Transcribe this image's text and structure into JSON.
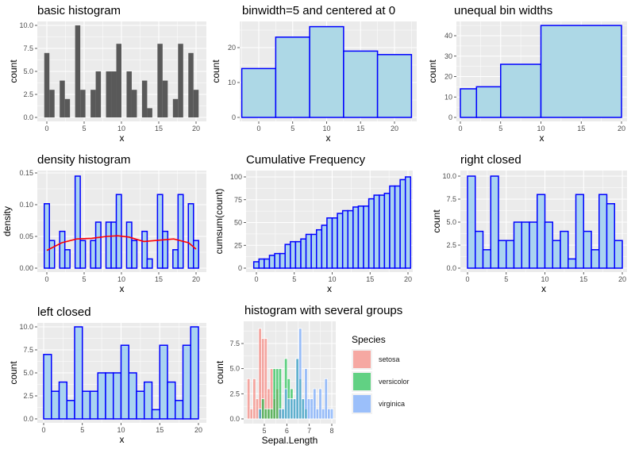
{
  "chart_data": [
    {
      "id": "p1",
      "type": "bar",
      "title": "basic histogram",
      "xlabel": "x",
      "ylabel": "count",
      "style": "gray",
      "bins": "30 equal bins, centers from 0 to 20",
      "counts": [
        7,
        3,
        0,
        4,
        2,
        0,
        10,
        3,
        0,
        3,
        5,
        0,
        5,
        5,
        8,
        0,
        5,
        3,
        0,
        4,
        1,
        0,
        8,
        4,
        0,
        2,
        8,
        0,
        7,
        3
      ],
      "xrange": [
        0,
        20
      ],
      "xticks": [
        0,
        5,
        10,
        15,
        20
      ],
      "yticks": [
        "0.0",
        "2.5",
        "5.0",
        "7.5",
        "10.0"
      ],
      "yticks_values": [
        0,
        2.5,
        5,
        7.5,
        10
      ],
      "grid": true
    },
    {
      "id": "p2",
      "type": "bar",
      "title": "binwidth=5 and centered at 0",
      "xlabel": "x",
      "ylabel": "count",
      "style": "blue",
      "centers": [
        0,
        5,
        10,
        15,
        20
      ],
      "binwidth": 5,
      "counts": [
        14,
        23,
        26,
        19,
        18
      ],
      "xticks": [
        0,
        5,
        10,
        15,
        20
      ],
      "yticks": [
        "0",
        "10",
        "20"
      ],
      "yticks_values": [
        0,
        10,
        20
      ],
      "grid": true
    },
    {
      "id": "p3",
      "type": "bar",
      "title": "unequal bin widths",
      "xlabel": "x",
      "ylabel": "count",
      "style": "blue",
      "breaks": [
        0,
        2,
        5,
        10,
        20
      ],
      "counts": [
        14,
        15,
        26,
        45
      ],
      "xticks": [
        0,
        5,
        10,
        15,
        20
      ],
      "yticks": [
        "0",
        "10",
        "20",
        "30",
        "40"
      ],
      "yticks_values": [
        0,
        10,
        20,
        30,
        40
      ],
      "grid": true
    },
    {
      "id": "p4",
      "type": "bar",
      "title": "density histogram",
      "xlabel": "x",
      "ylabel": "density",
      "style": "lightblue",
      "counts": [
        7,
        3,
        0,
        4,
        2,
        0,
        10,
        3,
        0,
        3,
        5,
        0,
        5,
        5,
        8,
        0,
        5,
        3,
        0,
        4,
        1,
        0,
        8,
        4,
        0,
        2,
        8,
        0,
        7,
        3
      ],
      "total": 100,
      "density_curve": {
        "color": "#ff0000",
        "x": [
          0,
          2,
          4,
          6,
          8,
          9.5,
          11,
          13,
          15,
          17,
          19,
          20
        ],
        "y": [
          0.028,
          0.04,
          0.046,
          0.047,
          0.05,
          0.051,
          0.049,
          0.042,
          0.044,
          0.046,
          0.04,
          0.03
        ]
      },
      "xticks": [
        0,
        5,
        10,
        15,
        20
      ],
      "yticks": [
        "0.00",
        "0.05",
        "0.10",
        "0.15"
      ],
      "yticks_values": [
        0,
        0.05,
        0.1,
        0.15
      ],
      "grid": true
    },
    {
      "id": "p5",
      "type": "bar",
      "title": "Cumulative Frequency",
      "xlabel": "x",
      "ylabel": "cumsum(count)",
      "style": "lightblue",
      "counts": [
        7,
        10,
        10,
        14,
        16,
        16,
        26,
        29,
        29,
        32,
        37,
        37,
        42,
        47,
        55,
        55,
        60,
        63,
        63,
        67,
        68,
        68,
        76,
        80,
        80,
        82,
        90,
        90,
        97,
        100
      ],
      "xticks": [
        0,
        5,
        10,
        15,
        20
      ],
      "yticks": [
        "0",
        "25",
        "50",
        "75",
        "100"
      ],
      "yticks_values": [
        0,
        25,
        50,
        75,
        100
      ],
      "grid": true
    },
    {
      "id": "p6",
      "type": "bar",
      "title": "right closed",
      "xlabel": "x",
      "ylabel": "count",
      "style": "lightblue",
      "breaks_from": 0,
      "binwidth": 1,
      "counts": [
        10,
        4,
        2,
        10,
        3,
        3,
        5,
        5,
        5,
        8,
        5,
        3,
        4,
        1,
        8,
        4,
        2,
        8,
        7,
        3
      ],
      "xticks": [
        0,
        5,
        10,
        15,
        20
      ],
      "yticks": [
        "0.0",
        "2.5",
        "5.0",
        "7.5",
        "10.0"
      ],
      "yticks_values": [
        0,
        2.5,
        5,
        7.5,
        10
      ],
      "grid": true
    },
    {
      "id": "p7",
      "type": "bar",
      "title": "left closed",
      "xlabel": "x",
      "ylabel": "count",
      "style": "lightblue",
      "breaks_from": 0,
      "binwidth": 1,
      "counts": [
        7,
        3,
        4,
        2,
        10,
        3,
        3,
        5,
        5,
        5,
        8,
        5,
        3,
        4,
        1,
        8,
        4,
        2,
        8,
        10
      ],
      "xticks": [
        0,
        5,
        10,
        15,
        20
      ],
      "yticks": [
        "0.0",
        "2.5",
        "5.0",
        "7.5",
        "10.0"
      ],
      "yticks_values": [
        0,
        2.5,
        5,
        7.5,
        10
      ],
      "grid": true
    },
    {
      "id": "p8",
      "type": "bar",
      "title": "histogram with several groups",
      "xlabel": "Sepal.Length",
      "ylabel": "count",
      "style": "groups",
      "bin_start": 4.3,
      "bin_end": 8.0,
      "xticks": [
        5,
        6,
        7,
        8
      ],
      "yticks": [
        "0.0",
        "2.5",
        "5.0",
        "7.5"
      ],
      "yticks_values": [
        0,
        2.5,
        5,
        7.5
      ],
      "legend": {
        "title": "Species",
        "placement": "right"
      },
      "series": [
        {
          "name": "setosa",
          "color": "#F8766D",
          "counts": [
            4,
            1,
            4,
            2,
            9,
            8,
            8,
            3,
            5,
            2,
            3,
            1,
            0,
            0,
            0,
            0,
            0,
            0,
            0,
            0,
            0,
            0,
            0,
            0,
            0,
            0,
            0,
            0,
            0,
            0
          ]
        },
        {
          "name": "versicolor",
          "color": "#00BA38",
          "counts": [
            0,
            0,
            0,
            0,
            1,
            2,
            1,
            1,
            1,
            5,
            5,
            5,
            1,
            6,
            4,
            3,
            2,
            6,
            4,
            2,
            1,
            0,
            0,
            0,
            0,
            0,
            0,
            0,
            0,
            0
          ]
        },
        {
          "name": "virginica",
          "color": "#619CFF",
          "counts": [
            0,
            0,
            0,
            0,
            1,
            0,
            0,
            0,
            0,
            0,
            0,
            1,
            1,
            3,
            2,
            2,
            2,
            6,
            9,
            2,
            5,
            2,
            2,
            3,
            1,
            3,
            1,
            4,
            1,
            1
          ]
        }
      ],
      "grid": true
    }
  ]
}
